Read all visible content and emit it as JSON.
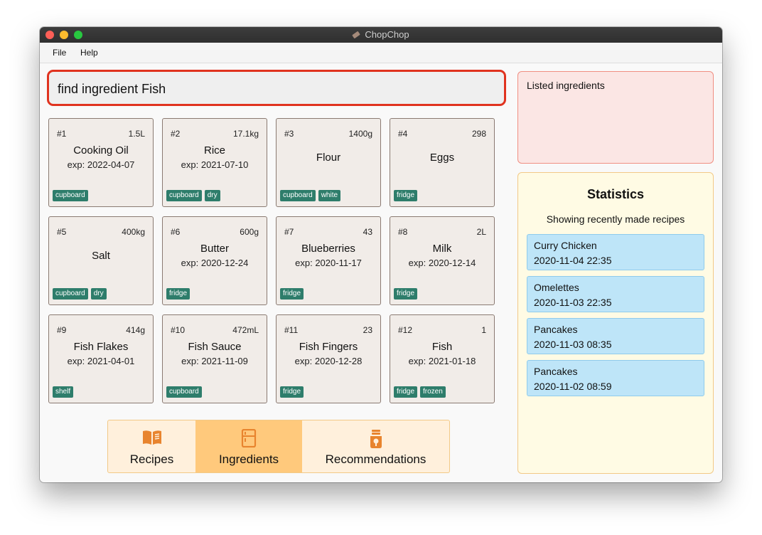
{
  "window": {
    "title": "ChopChop"
  },
  "menu": {
    "items": [
      "File",
      "Help"
    ]
  },
  "command": {
    "value": "find ingredient Fish"
  },
  "ingredients": [
    {
      "index": "#1",
      "quantity": "1.5L",
      "name": "Cooking Oil",
      "expiry": "exp: 2022-04-07",
      "tags": [
        "cupboard"
      ]
    },
    {
      "index": "#2",
      "quantity": "17.1kg",
      "name": "Rice",
      "expiry": "exp: 2021-07-10",
      "tags": [
        "cupboard",
        "dry"
      ]
    },
    {
      "index": "#3",
      "quantity": "1400g",
      "name": "Flour",
      "expiry": "",
      "tags": [
        "cupboard",
        "white"
      ]
    },
    {
      "index": "#4",
      "quantity": "298",
      "name": "Eggs",
      "expiry": "",
      "tags": [
        "fridge"
      ]
    },
    {
      "index": "#5",
      "quantity": "400kg",
      "name": "Salt",
      "expiry": "",
      "tags": [
        "cupboard",
        "dry"
      ]
    },
    {
      "index": "#6",
      "quantity": "600g",
      "name": "Butter",
      "expiry": "exp: 2020-12-24",
      "tags": [
        "fridge"
      ]
    },
    {
      "index": "#7",
      "quantity": "43",
      "name": "Blueberries",
      "expiry": "exp: 2020-11-17",
      "tags": [
        "fridge"
      ]
    },
    {
      "index": "#8",
      "quantity": "2L",
      "name": "Milk",
      "expiry": "exp: 2020-12-14",
      "tags": [
        "fridge"
      ]
    },
    {
      "index": "#9",
      "quantity": "414g",
      "name": "Fish Flakes",
      "expiry": "exp: 2021-04-01",
      "tags": [
        "shelf"
      ]
    },
    {
      "index": "#10",
      "quantity": "472mL",
      "name": "Fish Sauce",
      "expiry": "exp: 2021-11-09",
      "tags": [
        "cupboard"
      ]
    },
    {
      "index": "#11",
      "quantity": "23",
      "name": "Fish Fingers",
      "expiry": "exp: 2020-12-28",
      "tags": [
        "fridge"
      ]
    },
    {
      "index": "#12",
      "quantity": "1",
      "name": "Fish",
      "expiry": "exp: 2021-01-18",
      "tags": [
        "fridge",
        "frozen"
      ]
    }
  ],
  "tabs": [
    {
      "label": "Recipes",
      "icon": "book-icon",
      "active": false
    },
    {
      "label": "Ingredients",
      "icon": "fridge-icon",
      "active": true
    },
    {
      "label": "Recommendations",
      "icon": "lightbulb-icon",
      "active": false
    }
  ],
  "result": {
    "message": "Listed ingredients"
  },
  "statistics": {
    "title": "Statistics",
    "subtitle": "Showing recently made recipes",
    "recent": [
      {
        "name": "Curry Chicken",
        "time": "2020-11-04 22:35"
      },
      {
        "name": "Omelettes",
        "time": "2020-11-03 22:35"
      },
      {
        "name": "Pancakes",
        "time": "2020-11-03 08:35"
      },
      {
        "name": "Pancakes",
        "time": "2020-11-02 08:59"
      }
    ]
  },
  "colors": {
    "accent_error": "#e0331f",
    "tag": "#2e7d6b",
    "tab_active": "#ffc97c",
    "tab_bar": "#fff0dc",
    "icon": "#e8842e",
    "result_panel": "#fbe6e4",
    "stats_panel": "#fffbe4",
    "recent_item": "#bee5f8"
  }
}
